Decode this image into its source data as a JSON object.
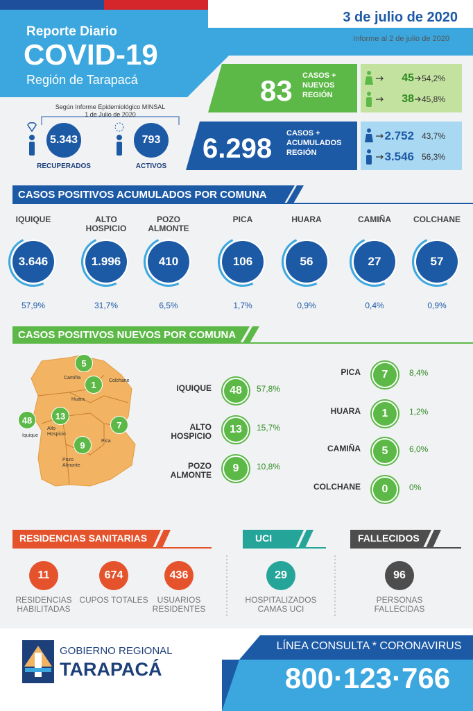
{
  "header": {
    "subtitle": "Reporte Diario",
    "title": "COVID-19",
    "region": "Región de Tarapacá",
    "date": "3 de julio de 2020",
    "informe": "Informe al 2 de julio de 2020"
  },
  "minsal": {
    "note": "Según Informe Epidemiológico MINSAL",
    "note_date": "1 de Julio de 2020",
    "items": [
      {
        "value": "5.343",
        "label": "RECUPERADOS"
      },
      {
        "value": "793",
        "label": "ACTIVOS"
      }
    ]
  },
  "nuevos": {
    "value": "83",
    "label": [
      "CASOS +",
      "NUEVOS",
      "REGIÓN"
    ],
    "split": [
      {
        "value": "45",
        "pct": "54,2%"
      },
      {
        "value": "38",
        "pct": "45,8%"
      }
    ]
  },
  "acumulados": {
    "value": "6.298",
    "label": [
      "CASOS +",
      "ACUMULADOS",
      "REGIÓN"
    ],
    "split": [
      {
        "value": "2.752",
        "pct": "43,7%"
      },
      {
        "value": "3.546",
        "pct": "56,3%"
      }
    ]
  },
  "acumulado_comuna": {
    "title": "CASOS POSITIVOS ACUMULADOS POR COMUNA",
    "items": [
      {
        "name": "IQUIQUE",
        "value": "3.646",
        "pct": "57,9%"
      },
      {
        "name": "ALTO HOSPICIO",
        "value": "1.996",
        "pct": "31,7%"
      },
      {
        "name": "POZO ALMONTE",
        "value": "410",
        "pct": "6,5%"
      },
      {
        "name": "PICA",
        "value": "106",
        "pct": "1,7%"
      },
      {
        "name": "HUARA",
        "value": "56",
        "pct": "0,9%"
      },
      {
        "name": "CAMIÑA",
        "value": "27",
        "pct": "0,4%"
      },
      {
        "name": "COLCHANE",
        "value": "57",
        "pct": "0,9%"
      }
    ]
  },
  "nuevos_comuna": {
    "title": "CASOS POSITIVOS NUEVOS POR COMUNA",
    "map": {
      "markers": [
        "5",
        "1",
        "48",
        "13",
        "7",
        "9"
      ],
      "places": [
        "Camiña",
        "Colchane",
        "Huara",
        "Iquique",
        "Alto Hospicio",
        "Pica",
        "Pozo Almonte"
      ]
    },
    "items": [
      {
        "name": "IQUIQUE",
        "value": "48",
        "pct": "57,8%"
      },
      {
        "name": "ALTO HOSPICIO",
        "value": "13",
        "pct": "15,7%"
      },
      {
        "name": "POZO ALMONTE",
        "value": "9",
        "pct": "10,8%"
      },
      {
        "name": "PICA",
        "value": "7",
        "pct": "8,4%"
      },
      {
        "name": "HUARA",
        "value": "1",
        "pct": "1,2%"
      },
      {
        "name": "CAMIÑA",
        "value": "5",
        "pct": "6,0%"
      },
      {
        "name": "COLCHANE",
        "value": "0",
        "pct": "0%"
      }
    ]
  },
  "residencias": {
    "title": "RESIDENCIAS SANITARIAS",
    "items": [
      {
        "value": "11",
        "label": "RESIDENCIAS HABILITADAS"
      },
      {
        "value": "674",
        "label": "CUPOS TOTALES"
      },
      {
        "value": "436",
        "label": "USUARIOS RESIDENTES"
      }
    ]
  },
  "uci": {
    "title": "UCI",
    "value": "29",
    "label": "HOSPITALIZADOS CAMAS UCI"
  },
  "fallecidos": {
    "title": "FALLECIDOS",
    "value": "96",
    "label": "PERSONAS FALLECIDAS"
  },
  "footer": {
    "org": "GOBIERNO REGIONAL",
    "org_name": "TARAPACÁ",
    "line_title": "LÍNEA CONSULTA * CORONAVIRUS",
    "phone": "800·123·766"
  }
}
